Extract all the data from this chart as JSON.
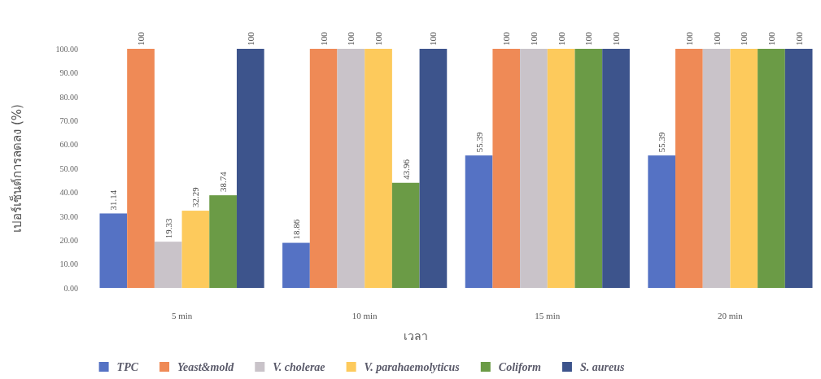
{
  "chart_data": {
    "type": "bar",
    "xlabel": "เวลา",
    "ylabel": "เปอร์เซ็นต์การลดลง (%)",
    "categories": [
      "5 min",
      "10 min",
      "15 min",
      "20 min"
    ],
    "series": [
      {
        "name": "TPC",
        "color": "#5572c4",
        "values": [
          31.14,
          18.86,
          55.39,
          55.39
        ]
      },
      {
        "name": "Yeast&mold",
        "color": "#ef8a56",
        "values": [
          100,
          100,
          100,
          100
        ]
      },
      {
        "name": "V. cholerae",
        "color": "#c9c3c9",
        "values": [
          19.33,
          100,
          100,
          100
        ]
      },
      {
        "name": "V. parahaemolyticus",
        "color": "#fdca5c",
        "values": [
          32.29,
          100,
          100,
          100
        ]
      },
      {
        "name": "Coliform",
        "color": "#6b9b46",
        "values": [
          38.74,
          43.96,
          100,
          100
        ]
      },
      {
        "name": "S. aureus",
        "color": "#3d548c",
        "values": [
          100,
          100,
          100,
          100
        ]
      }
    ],
    "ylim": [
      0,
      100
    ],
    "yticks": [
      {
        "value": 0,
        "label": "0.00"
      },
      {
        "value": 10,
        "label": "10.00"
      },
      {
        "value": 20,
        "label": "20.00"
      },
      {
        "value": 30,
        "label": "30.00"
      },
      {
        "value": 40,
        "label": "40.00"
      },
      {
        "value": 50,
        "label": "50.00"
      },
      {
        "value": 60,
        "label": "60.00"
      },
      {
        "value": 70,
        "label": "70.00"
      },
      {
        "value": 80,
        "label": "80.00"
      },
      {
        "value": 90,
        "label": "90.00"
      },
      {
        "value": 100,
        "label": "100.00"
      }
    ],
    "data_labels": true,
    "legend": "bottom",
    "grid": false
  }
}
